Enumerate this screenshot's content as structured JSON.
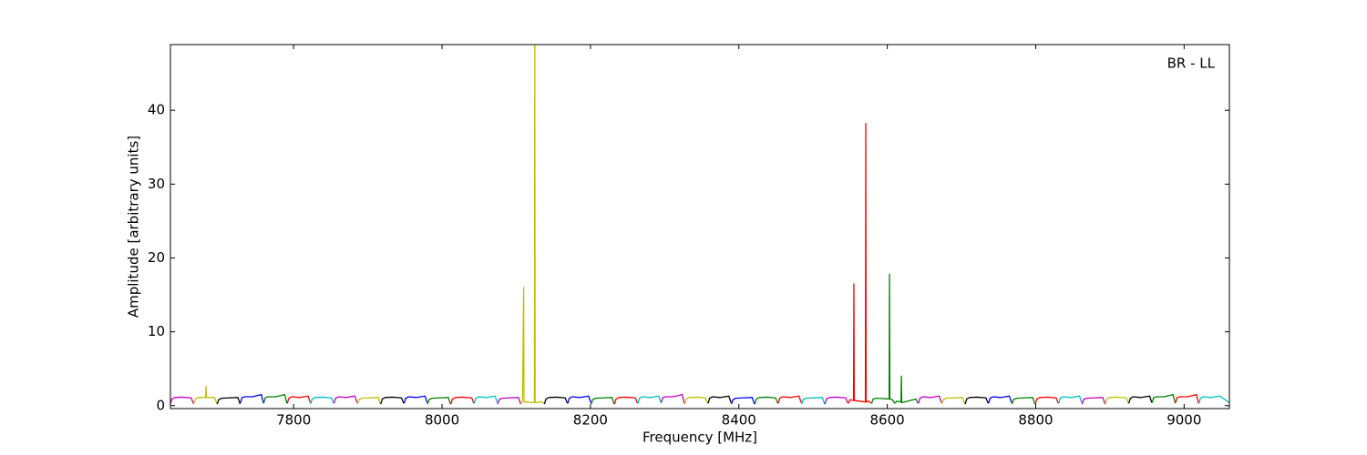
{
  "chart_data": {
    "type": "line",
    "xlabel": "Frequency [MHz]",
    "ylabel": "Amplitude [arbitrary units]",
    "annotation": "BR - LL",
    "xlim": [
      7634,
      9061
    ],
    "ylim": [
      -0.4,
      48.9
    ],
    "xticks": [
      7800,
      8000,
      8200,
      8400,
      8600,
      8800,
      9000
    ],
    "yticks": [
      0,
      10,
      20,
      30,
      40
    ],
    "series": [
      {
        "color": "#bf00bf",
        "x": [
          7634,
          7636,
          7640,
          7650,
          7662,
          7665
        ],
        "values": [
          0.2,
          0.9,
          1.1,
          1.15,
          1.05,
          0.3
        ]
      },
      {
        "color": "#bfbf00",
        "x": [
          7665.5,
          7667.5,
          7671.5,
          7681.5,
          7682,
          7682.5,
          7693.5,
          7696.5
        ],
        "values": [
          0.2,
          0.9,
          1.1,
          1.1,
          2.6,
          1.1,
          1.1,
          0.3
        ]
      },
      {
        "color": "#000000",
        "x": [
          7697,
          7699,
          7703,
          7713,
          7725,
          7728
        ],
        "values": [
          0.2,
          0.8,
          1.0,
          1.05,
          1.1,
          0.2
        ]
      },
      {
        "color": "#0000ff",
        "x": [
          7728.5,
          7730.5,
          7734.5,
          7744.5,
          7756.5,
          7759.5
        ],
        "values": [
          0.4,
          1.1,
          1.2,
          1.2,
          1.5,
          0.3
        ]
      },
      {
        "color": "#008000",
        "x": [
          7760,
          7762,
          7766,
          7776,
          7788,
          7791
        ],
        "values": [
          0.4,
          1.1,
          1.2,
          1.2,
          1.5,
          0.3
        ]
      },
      {
        "color": "#ff0000",
        "x": [
          7791.5,
          7793.5,
          7797.5,
          7807.5,
          7819.5,
          7822.5
        ],
        "values": [
          0.3,
          1.0,
          1.2,
          1.1,
          1.3,
          0.4
        ]
      },
      {
        "color": "#00bfbf",
        "x": [
          7823,
          7825,
          7829,
          7839,
          7851,
          7854
        ],
        "values": [
          0.2,
          0.9,
          1.1,
          1.15,
          1.05,
          0.3
        ]
      },
      {
        "color": "#bf00bf",
        "x": [
          7854.5,
          7856.5,
          7860.5,
          7870.5,
          7882.5,
          7885.5
        ],
        "values": [
          0.3,
          1.0,
          1.2,
          1.1,
          1.3,
          0.4
        ]
      },
      {
        "color": "#bfbf00",
        "x": [
          7886,
          7888,
          7892,
          7902,
          7914,
          7917
        ],
        "values": [
          0.2,
          0.8,
          1.0,
          1.05,
          1.1,
          0.2
        ]
      },
      {
        "color": "#000000",
        "x": [
          7917.5,
          7919.5,
          7923.5,
          7933.5,
          7945.5,
          7948.5
        ],
        "values": [
          0.2,
          0.9,
          1.1,
          1.15,
          1.05,
          0.3
        ]
      },
      {
        "color": "#0000ff",
        "x": [
          7949,
          7951,
          7955,
          7965,
          7977,
          7980
        ],
        "values": [
          0.3,
          1.0,
          1.2,
          1.1,
          1.3,
          0.4
        ]
      },
      {
        "color": "#008000",
        "x": [
          7980.5,
          7982.5,
          7986.5,
          7996.5,
          8008.5,
          8011.5
        ],
        "values": [
          0.2,
          0.8,
          1.0,
          1.05,
          1.1,
          0.2
        ]
      },
      {
        "color": "#ff0000",
        "x": [
          8012,
          8014,
          8018,
          8028,
          8040,
          8043
        ],
        "values": [
          0.2,
          0.9,
          1.1,
          1.15,
          1.05,
          0.3
        ]
      },
      {
        "color": "#00bfbf",
        "x": [
          8043.5,
          8045.5,
          8049.5,
          8059.5,
          8071.5,
          8074.5
        ],
        "values": [
          0.3,
          1.0,
          1.2,
          1.1,
          1.3,
          0.4
        ]
      },
      {
        "color": "#bf00bf",
        "x": [
          8075,
          8077,
          8081,
          8091,
          8103,
          8106
        ],
        "values": [
          0.2,
          0.8,
          1.0,
          1.05,
          1.1,
          0.2
        ]
      },
      {
        "color": "#bfbf00",
        "x": [
          8106.5,
          8108.5,
          8110,
          8110.5,
          8111,
          8124.5,
          8125,
          8125.5,
          8134.5,
          8137.5
        ],
        "values": [
          0.3,
          0.6,
          16,
          0.6,
          0.5,
          0.4,
          49,
          0.4,
          0.5,
          0.3
        ]
      },
      {
        "color": "#000000",
        "x": [
          8138,
          8140,
          8144,
          8154,
          8166,
          8169
        ],
        "values": [
          0.2,
          0.9,
          1.1,
          1.15,
          1.05,
          0.3
        ]
      },
      {
        "color": "#0000ff",
        "x": [
          8169.5,
          8171.5,
          8175.5,
          8185.5,
          8197.5,
          8200.5
        ],
        "values": [
          0.3,
          1.0,
          1.2,
          1.1,
          1.3,
          0.4
        ]
      },
      {
        "color": "#008000",
        "x": [
          8201,
          8203,
          8207,
          8217,
          8229,
          8232
        ],
        "values": [
          0.2,
          0.8,
          1.0,
          1.05,
          1.1,
          0.2
        ]
      },
      {
        "color": "#ff0000",
        "x": [
          8232.5,
          8234.5,
          8238.5,
          8248.5,
          8260.5,
          8263.5
        ],
        "values": [
          0.2,
          0.9,
          1.1,
          1.15,
          1.05,
          0.3
        ]
      },
      {
        "color": "#00bfbf",
        "x": [
          8264,
          8266,
          8270,
          8280,
          8292,
          8295
        ],
        "values": [
          0.3,
          1.0,
          1.2,
          1.1,
          1.3,
          0.4
        ]
      },
      {
        "color": "#bf00bf",
        "x": [
          8295.5,
          8297.5,
          8301.5,
          8311.5,
          8323.5,
          8326.5
        ],
        "values": [
          0.4,
          1.1,
          1.2,
          1.2,
          1.5,
          0.3
        ]
      },
      {
        "color": "#bfbf00",
        "x": [
          8327,
          8329,
          8333,
          8343,
          8355,
          8358
        ],
        "values": [
          0.2,
          0.9,
          1.1,
          1.15,
          1.05,
          0.3
        ]
      },
      {
        "color": "#000000",
        "x": [
          8358.5,
          8360.5,
          8364.5,
          8374.5,
          8386.5,
          8389.5
        ],
        "values": [
          0.3,
          1.0,
          1.2,
          1.1,
          1.3,
          0.4
        ]
      },
      {
        "color": "#0000ff",
        "x": [
          8390,
          8392,
          8396,
          8406,
          8418,
          8421
        ],
        "values": [
          0.2,
          0.8,
          1.0,
          1.05,
          1.1,
          0.2
        ]
      },
      {
        "color": "#008000",
        "x": [
          8421.5,
          8423.5,
          8427.5,
          8437.5,
          8449.5,
          8452.5
        ],
        "values": [
          0.2,
          0.9,
          1.1,
          1.15,
          1.05,
          0.3
        ]
      },
      {
        "color": "#ff0000",
        "x": [
          8453,
          8455,
          8459,
          8469,
          8481,
          8484
        ],
        "values": [
          0.3,
          1.0,
          1.2,
          1.1,
          1.3,
          0.4
        ]
      },
      {
        "color": "#00bfbf",
        "x": [
          8484.5,
          8486.5,
          8490.5,
          8500.5,
          8512.5,
          8515.5
        ],
        "values": [
          0.2,
          0.8,
          1.0,
          1.05,
          1.1,
          0.2
        ]
      },
      {
        "color": "#bf00bf",
        "x": [
          8516,
          8518,
          8522,
          8532,
          8544,
          8547
        ],
        "values": [
          0.2,
          0.9,
          1.1,
          1.15,
          1.05,
          0.3
        ]
      },
      {
        "color": "#ff0000",
        "x": [
          8547.5,
          8549.5,
          8554.5,
          8555,
          8555.5,
          8570.5,
          8571,
          8571.5,
          8575.5,
          8578.5
        ],
        "values": [
          0.3,
          0.8,
          0.7,
          16.5,
          0.7,
          0.5,
          38.2,
          0.5,
          0.6,
          0.3
        ]
      },
      {
        "color": "#008000",
        "x": [
          8579,
          8581,
          8585,
          8602.5,
          8603,
          8603.5,
          8607,
          8610
        ],
        "values": [
          0.3,
          0.9,
          1.0,
          0.9,
          17.8,
          0.9,
          0.8,
          0.3
        ]
      },
      {
        "color": "#008000",
        "x": [
          8610.5,
          8612.5,
          8618.5,
          8619,
          8619.5,
          8638.5,
          8641.5
        ],
        "values": [
          0.3,
          0.6,
          0.5,
          4.0,
          0.4,
          0.9,
          0.3
        ]
      },
      {
        "color": "#bf00bf",
        "x": [
          8642,
          8644,
          8648,
          8658,
          8670,
          8673
        ],
        "values": [
          0.3,
          1.0,
          1.2,
          1.1,
          1.3,
          0.4
        ]
      },
      {
        "color": "#bfbf00",
        "x": [
          8673.5,
          8675.5,
          8679.5,
          8689.5,
          8701.5,
          8704.5
        ],
        "values": [
          0.2,
          0.8,
          1.0,
          1.05,
          1.1,
          0.2
        ]
      },
      {
        "color": "#000000",
        "x": [
          8705,
          8707,
          8711,
          8721,
          8733,
          8736
        ],
        "values": [
          0.2,
          0.9,
          1.1,
          1.15,
          1.05,
          0.3
        ]
      },
      {
        "color": "#0000ff",
        "x": [
          8736.5,
          8738.5,
          8742.5,
          8752.5,
          8764.5,
          8767.5
        ],
        "values": [
          0.3,
          1.0,
          1.2,
          1.1,
          1.3,
          0.4
        ]
      },
      {
        "color": "#008000",
        "x": [
          8768,
          8770,
          8774,
          8784,
          8796,
          8799
        ],
        "values": [
          0.2,
          0.8,
          1.0,
          1.05,
          1.1,
          0.2
        ]
      },
      {
        "color": "#ff0000",
        "x": [
          8799.5,
          8801.5,
          8805.5,
          8815.5,
          8827.5,
          8830.5
        ],
        "values": [
          0.2,
          0.9,
          1.1,
          1.15,
          1.05,
          0.3
        ]
      },
      {
        "color": "#00bfbf",
        "x": [
          8831,
          8833,
          8837,
          8847,
          8859,
          8862
        ],
        "values": [
          0.3,
          1.0,
          1.2,
          1.1,
          1.3,
          0.4
        ]
      },
      {
        "color": "#bf00bf",
        "x": [
          8862.5,
          8864.5,
          8868.5,
          8878.5,
          8890.5,
          8893.5
        ],
        "values": [
          0.2,
          0.8,
          1.0,
          1.05,
          1.1,
          0.2
        ]
      },
      {
        "color": "#bfbf00",
        "x": [
          8894,
          8896,
          8900,
          8910,
          8922,
          8925
        ],
        "values": [
          0.2,
          0.9,
          1.1,
          1.15,
          1.05,
          0.3
        ]
      },
      {
        "color": "#000000",
        "x": [
          8925.5,
          8927.5,
          8931.5,
          8941.5,
          8953.5,
          8956.5
        ],
        "values": [
          0.3,
          1.0,
          1.2,
          1.1,
          1.3,
          0.4
        ]
      },
      {
        "color": "#008000",
        "x": [
          8957,
          8959,
          8963,
          8973,
          8985,
          8988
        ],
        "values": [
          0.4,
          1.1,
          1.2,
          1.2,
          1.5,
          0.3
        ]
      },
      {
        "color": "#ff0000",
        "x": [
          8988.5,
          8990.5,
          8994.5,
          9004.5,
          9016.5,
          9019.5
        ],
        "values": [
          0.4,
          1.1,
          1.2,
          1.2,
          1.5,
          0.3
        ]
      },
      {
        "color": "#00bfbf",
        "x": [
          9020,
          9022,
          9026,
          9036,
          9048,
          9061
        ],
        "values": [
          0.3,
          1.0,
          1.2,
          1.1,
          1.3,
          0.4
        ]
      }
    ]
  }
}
